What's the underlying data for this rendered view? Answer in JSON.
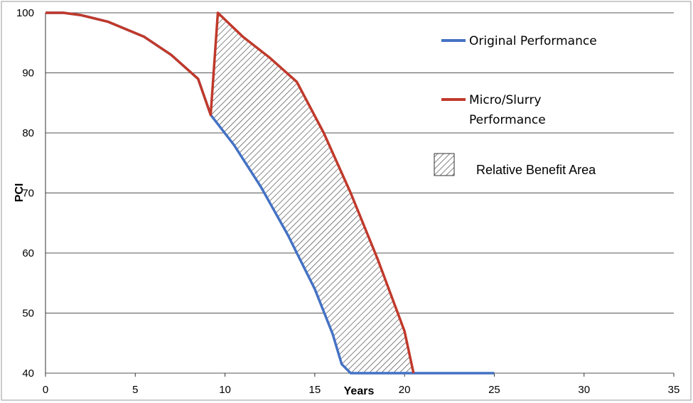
{
  "chart_data": {
    "type": "line",
    "title": "",
    "xlabel": "Years",
    "ylabel": "PCI",
    "xlim": [
      0,
      35
    ],
    "ylim": [
      40,
      100
    ],
    "x_ticks": [
      "0",
      "5",
      "10",
      "15",
      "20",
      "25",
      "30",
      "35"
    ],
    "y_ticks": [
      "40",
      "50",
      "60",
      "70",
      "80",
      "90",
      "100"
    ],
    "grid": "horizontal",
    "legend_position": "right",
    "series": [
      {
        "name": "Original Performance",
        "color": "#4472c4",
        "points": [
          [
            0,
            100
          ],
          [
            1,
            100
          ],
          [
            2,
            99.6
          ],
          [
            3.5,
            98.5
          ],
          [
            5.5,
            96
          ],
          [
            7,
            93
          ],
          [
            8.5,
            89
          ],
          [
            9.2,
            83
          ],
          [
            10.5,
            78
          ],
          [
            12,
            71
          ],
          [
            13.5,
            63
          ],
          [
            15,
            54
          ],
          [
            16,
            46.5
          ],
          [
            16.5,
            41.5
          ],
          [
            17,
            40
          ],
          [
            20.5,
            40
          ],
          [
            25,
            40
          ]
        ]
      },
      {
        "name": "Micro/Slurry\nPerformance",
        "color": "#c0392b",
        "points": [
          [
            0,
            100
          ],
          [
            1,
            100
          ],
          [
            2,
            99.6
          ],
          [
            3.5,
            98.5
          ],
          [
            5.5,
            96
          ],
          [
            7,
            93
          ],
          [
            8.5,
            89
          ],
          [
            9.2,
            83
          ],
          [
            9.6,
            100
          ],
          [
            11,
            96
          ],
          [
            12.5,
            92.5
          ],
          [
            14,
            88.5
          ],
          [
            15.5,
            80
          ],
          [
            17,
            70
          ],
          [
            18.5,
            59
          ],
          [
            20,
            47
          ],
          [
            20.5,
            40
          ]
        ]
      }
    ],
    "shaded_area": {
      "name": "Relative Benefit Area",
      "pattern": "hatched"
    }
  }
}
